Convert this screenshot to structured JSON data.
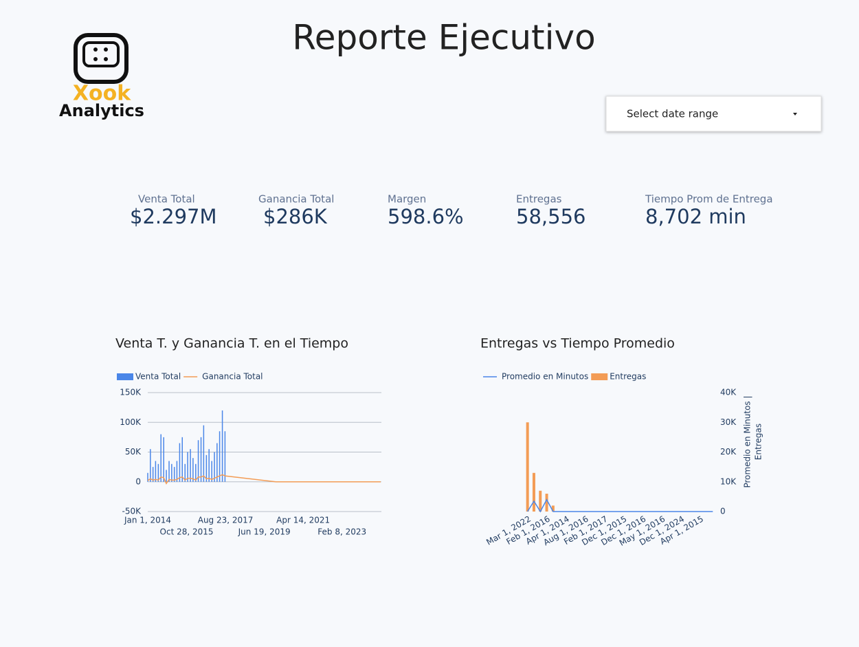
{
  "header": {
    "title": "Reporte Ejecutivo",
    "logo": [
      "Xook",
      "Analytics"
    ],
    "date_selector": "Select date range"
  },
  "kpis": [
    {
      "label": "Venta Total",
      "value": "$2.297M"
    },
    {
      "label": "Ganancia Total",
      "value": "$286K"
    },
    {
      "label": "Margen",
      "value": "598.6%"
    },
    {
      "label": "Entregas",
      "value": "58,556"
    },
    {
      "label": "Tiempo Prom de Entrega",
      "value": "8,702 min"
    }
  ],
  "chart_data": [
    {
      "type": "combo",
      "title": "Venta T. y Ganancia T. en el Tiempo",
      "x": [
        "2014-01-01",
        "2014-02-15",
        "2014-04-01",
        "2014-05-15",
        "2014-07-01",
        "2014-08-15",
        "2014-10-01",
        "2014-11-15",
        "2015-01-01",
        "2015-02-15",
        "2015-04-01",
        "2015-05-15",
        "2015-07-01",
        "2015-08-15",
        "2015-10-01",
        "2015-11-15",
        "2016-01-01",
        "2016-02-15",
        "2016-04-01",
        "2016-05-15",
        "2016-07-01",
        "2016-08-15",
        "2016-10-01",
        "2016-11-15",
        "2017-01-01",
        "2017-02-15",
        "2017-04-01",
        "2017-05-15",
        "2017-07-01",
        "2017-08-15",
        "2020-01-01",
        "2024-12-01"
      ],
      "series": [
        {
          "name": "Venta Total",
          "kind": "bar",
          "color": "#4a86e8",
          "values": [
            15000,
            55000,
            25000,
            35000,
            30000,
            80000,
            75000,
            20000,
            35000,
            30000,
            25000,
            35000,
            65000,
            75000,
            30000,
            50000,
            55000,
            40000,
            30000,
            70000,
            75000,
            95000,
            45000,
            55000,
            35000,
            50000,
            65000,
            85000,
            120000,
            85000,
            0,
            0
          ]
        },
        {
          "name": "Ganancia Total",
          "kind": "line",
          "color": "#f39c55",
          "values": [
            2000,
            5000,
            3000,
            4000,
            3000,
            8000,
            7000,
            -3000,
            4000,
            3000,
            3000,
            4000,
            7000,
            8000,
            3000,
            6000,
            6000,
            5000,
            3000,
            8000,
            8000,
            10000,
            5000,
            6000,
            4000,
            6000,
            8000,
            10000,
            12000,
            10000,
            0,
            0
          ]
        }
      ],
      "xlim": [
        "2014-01-01",
        "2024-12-01"
      ],
      "xticks": [
        {
          "value": "2014-01-01",
          "label": "Jan 1, 2014"
        },
        {
          "value": "2015-10-28",
          "label": "Oct 28, 2015"
        },
        {
          "value": "2017-08-23",
          "label": "Aug 23, 2017"
        },
        {
          "value": "2019-06-19",
          "label": "Jun 19, 2019"
        },
        {
          "value": "2021-04-14",
          "label": "Apr 14, 2021"
        },
        {
          "value": "2023-02-08",
          "label": "Feb 8, 2023"
        }
      ],
      "ylim": [
        -50000,
        150000
      ],
      "yticks": [
        {
          "value": -50000,
          "label": "-50K"
        },
        0,
        {
          "value": 50000,
          "label": "50K"
        },
        {
          "value": 100000,
          "label": "100K"
        },
        {
          "value": 150000,
          "label": "150K"
        }
      ],
      "grid": true
    },
    {
      "type": "combo",
      "title": "Entregas vs Tiempo Promedio",
      "categories": [
        "Mar 1, 2022",
        null,
        null,
        "Feb 1, 2016",
        null,
        null,
        "Apr 1, 2014",
        null,
        null,
        "Aug 1, 2016",
        null,
        null,
        "Feb 1, 2017",
        null,
        null,
        "Dec 1, 2015",
        null,
        null,
        "Dec 1, 2016",
        null,
        null,
        "May 1, 2016",
        null,
        null,
        "Dec 1, 2024",
        null,
        null,
        "Apr 1, 2015",
        null,
        null
      ],
      "series": [
        {
          "name": "Promedio en Minutos",
          "kind": "line",
          "color": "#4a86e8",
          "values": [
            0,
            3500,
            0,
            4000,
            0,
            0,
            0,
            0,
            0,
            0,
            0,
            0,
            0,
            0,
            0,
            0,
            0,
            0,
            0,
            0,
            0,
            0,
            0,
            0,
            0,
            0,
            0,
            0,
            0,
            0
          ]
        },
        {
          "name": "Entregas",
          "kind": "bar",
          "color": "#f39c55",
          "values": [
            30000,
            13000,
            7000,
            6000,
            2000,
            0,
            0,
            0,
            0,
            0,
            0,
            0,
            0,
            0,
            0,
            0,
            0,
            0,
            0,
            0,
            0,
            0,
            0,
            0,
            0,
            0,
            0,
            0,
            0,
            0
          ]
        }
      ],
      "ylim": [
        0,
        40000
      ],
      "yticks": [
        0,
        {
          "value": 10000,
          "label": "10K"
        },
        {
          "value": 20000,
          "label": "20K"
        },
        {
          "value": 30000,
          "label": "30K"
        },
        {
          "value": 40000,
          "label": "40K"
        }
      ],
      "ylabel": [
        "Promedio en Minutos |",
        "Entregas"
      ],
      "axis_side": "right",
      "grid": false
    }
  ]
}
